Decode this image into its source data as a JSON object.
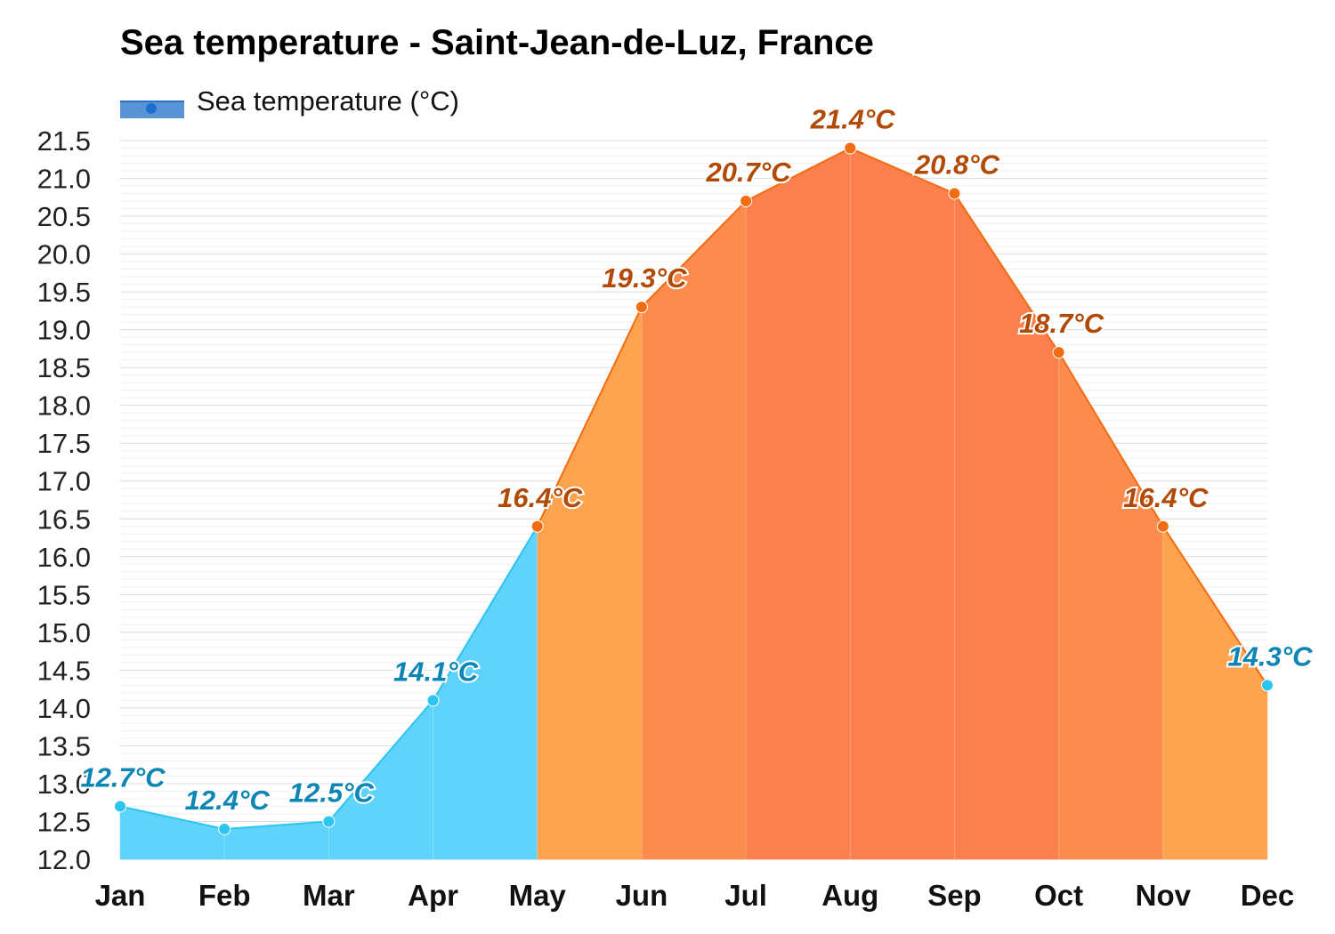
{
  "chart_data": {
    "type": "area",
    "title": "Sea temperature - Saint-Jean-de-Luz, France",
    "legend": {
      "label": "Sea temperature (°C)",
      "placement": "top-left"
    },
    "categories": [
      "Jan",
      "Feb",
      "Mar",
      "Apr",
      "May",
      "Jun",
      "Jul",
      "Aug",
      "Sep",
      "Oct",
      "Nov",
      "Dec"
    ],
    "series": [
      {
        "name": "Sea temperature (°C)",
        "values": [
          12.7,
          12.4,
          12.5,
          14.1,
          16.4,
          19.3,
          20.7,
          21.4,
          20.8,
          18.7,
          16.4,
          14.3
        ],
        "labels": [
          "12.7°C",
          "12.4°C",
          "12.5°C",
          "14.1°C",
          "16.4°C",
          "19.3°C",
          "20.7°C",
          "21.4°C",
          "20.8°C",
          "18.7°C",
          "16.4°C",
          "14.3°C"
        ]
      }
    ],
    "y_ticks": [
      "12.0",
      "12.5",
      "13.0",
      "13.5",
      "14.0",
      "14.5",
      "15.0",
      "15.5",
      "16.0",
      "16.5",
      "17.0",
      "17.5",
      "18.0",
      "18.5",
      "19.0",
      "19.5",
      "20.0",
      "20.5",
      "21.0",
      "21.5"
    ],
    "ylim": [
      12.0,
      21.5
    ],
    "grid": true,
    "colors": {
      "cold_fill": "#5fd3fb",
      "cold_line": "#2ec4f0",
      "cold_label": "#0e86b5",
      "mild_fill": "#fba34e",
      "warm_fill": "#fc8c4e",
      "hot_fill": "#fc7f4e",
      "warm_line": "#f26d12",
      "warm_label": "#b04a04"
    }
  }
}
